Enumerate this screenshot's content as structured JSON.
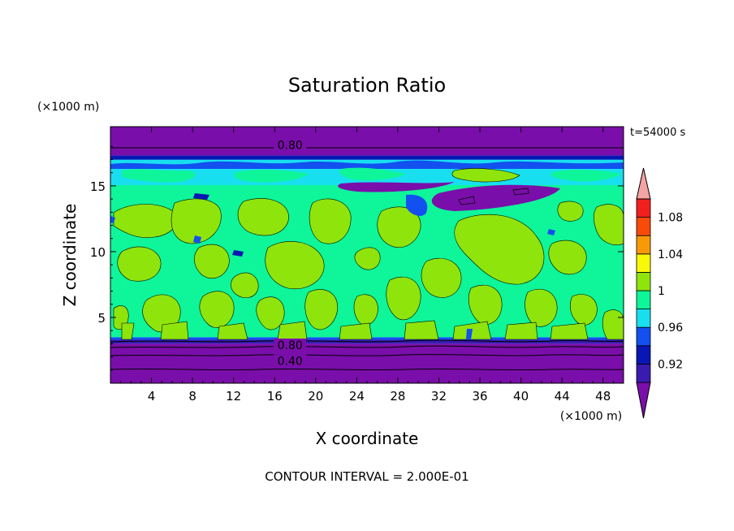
{
  "chart_data": {
    "type": "heatmap",
    "title": "Saturation Ratio",
    "xlabel": "X coordinate",
    "ylabel": "Z coordinate",
    "x_unit": "(×1000 m)",
    "y_unit": "(×1000 m)",
    "time_label": "t=54000 s",
    "footer": "CONTOUR INTERVAL = 2.000E-01",
    "xlim": [
      0,
      50
    ],
    "ylim": [
      0,
      19.5
    ],
    "x_ticks": [
      4,
      8,
      12,
      16,
      20,
      24,
      28,
      32,
      36,
      40,
      44,
      48
    ],
    "y_ticks": [
      5,
      10,
      15
    ],
    "contour_labels": [
      {
        "text": "0.80",
        "x": 17.5,
        "y": 18.1
      },
      {
        "text": "0.80",
        "x": 17.5,
        "y": 2.9
      },
      {
        "text": "0.40",
        "x": 17.5,
        "y": 1.7
      }
    ],
    "colorbar": {
      "tick_labels": [
        "0.92",
        "0.96",
        "1",
        "1.04",
        "1.08"
      ],
      "tick_values": [
        0.92,
        0.96,
        1.0,
        1.04,
        1.08
      ],
      "levels": [
        0.9,
        0.92,
        0.94,
        0.96,
        0.98,
        1.0,
        1.02,
        1.04,
        1.06,
        1.08,
        1.1
      ],
      "colors": [
        "#7a0eaa",
        "#3a1bb0",
        "#0a16b4",
        "#1250f0",
        "#18dff0",
        "#0ef59a",
        "#8fe40c",
        "#f8f808",
        "#f89a08",
        "#f84a08",
        "#f21f1f",
        "#f5a4a4"
      ]
    },
    "layers": [
      {
        "z_from": 0.0,
        "z_to": 3.0,
        "value": 0.6,
        "color": "#7a0eaa"
      },
      {
        "z_from": 3.0,
        "z_to": 3.3,
        "value": 0.92,
        "color": "#3a1bb0"
      },
      {
        "z_from": 3.3,
        "z_to": 3.5,
        "value": 0.97,
        "color": "#1250f0"
      },
      {
        "z_from": 3.5,
        "z_to": 15.0,
        "value": 1.0,
        "color": "#0ef59a"
      },
      {
        "z_from": 15.0,
        "z_to": 17.3,
        "value": 0.95,
        "color": "#18dff0"
      },
      {
        "z_from": 17.3,
        "z_to": 19.5,
        "value": 0.8,
        "color": "#7a0eaa"
      }
    ]
  }
}
